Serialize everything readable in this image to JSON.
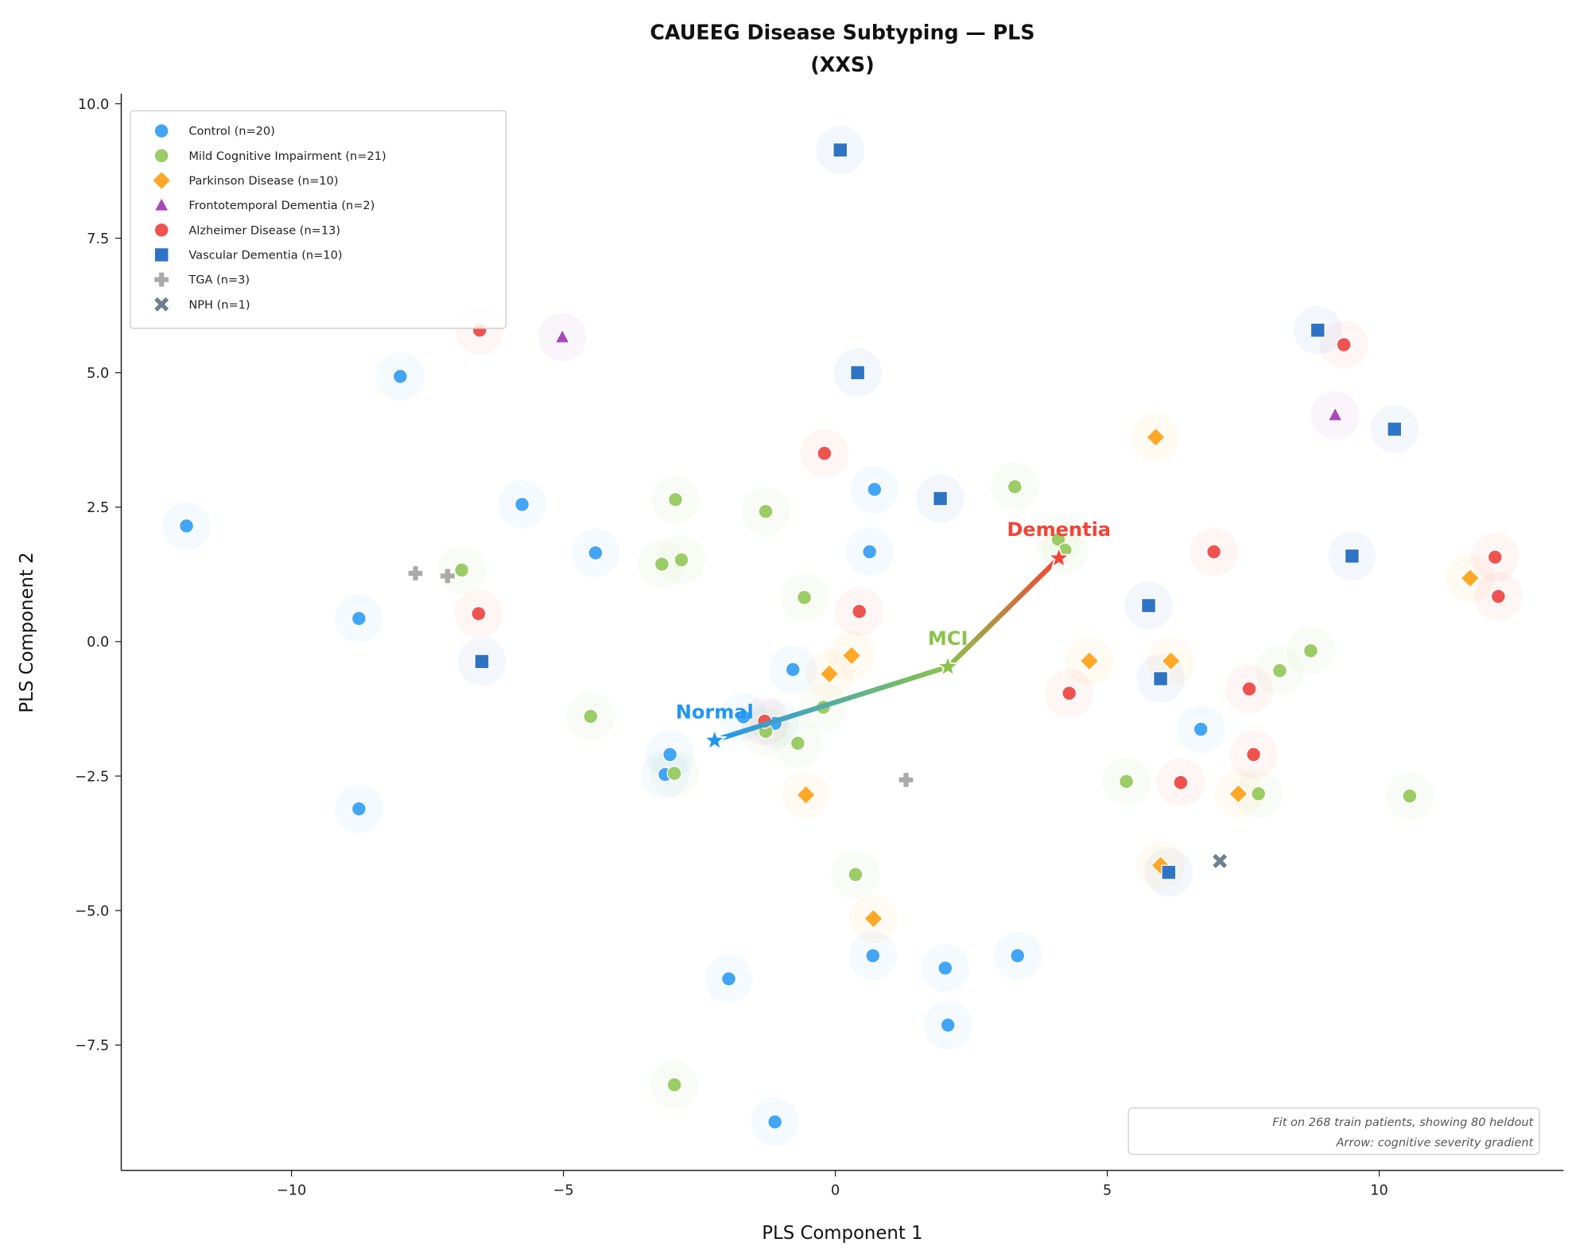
{
  "chart_data": {
    "type": "scatter",
    "title_line1": "CAUEEG Disease Subtyping — PLS",
    "title_line2": "(XXS)",
    "xlabel": "PLS Component 1",
    "ylabel": "PLS Component 2",
    "xlim": [
      -13.13,
      13.39
    ],
    "ylim": [
      -9.83,
      10.19
    ],
    "xticks": [
      {
        "v": -10,
        "label": "−10"
      },
      {
        "v": -5,
        "label": "−5"
      },
      {
        "v": 0,
        "label": "0"
      },
      {
        "v": 5,
        "label": "5"
      },
      {
        "v": 10,
        "label": "10"
      }
    ],
    "yticks": [
      {
        "v": 10,
        "label": "10.0"
      },
      {
        "v": 7.5,
        "label": "7.5"
      },
      {
        "v": 5,
        "label": "5.0"
      },
      {
        "v": 2.5,
        "label": "2.5"
      },
      {
        "v": 0,
        "label": "0.0"
      },
      {
        "v": -2.5,
        "label": "−2.5"
      },
      {
        "v": -5,
        "label": "−5.0"
      },
      {
        "v": -7.5,
        "label": "−7.5"
      }
    ],
    "legend_position": "top-left",
    "series": [
      {
        "name": "Control (n=20)",
        "marker": "circle",
        "color": "#42A5F5",
        "halo": true,
        "points": [
          [
            -11.93,
            2.15
          ],
          [
            -8.0,
            4.93
          ],
          [
            -8.76,
            0.43
          ],
          [
            -8.76,
            -3.11
          ],
          [
            -5.76,
            2.55
          ],
          [
            -4.41,
            1.65
          ],
          [
            -3.04,
            -2.1
          ],
          [
            -3.13,
            -2.47
          ],
          [
            -0.78,
            -0.52
          ],
          [
            -1.11,
            -1.52
          ],
          [
            -1.69,
            -1.4
          ],
          [
            0.72,
            2.83
          ],
          [
            0.63,
            1.67
          ],
          [
            0.69,
            -5.84
          ],
          [
            -1.96,
            -6.27
          ],
          [
            2.02,
            -6.07
          ],
          [
            3.35,
            -5.84
          ],
          [
            2.07,
            -7.13
          ],
          [
            -1.11,
            -8.93
          ],
          [
            6.72,
            -1.63
          ]
        ]
      },
      {
        "name": "Mild Cognitive Impairment (n=21)",
        "marker": "circle",
        "color": "#9CCC65",
        "halo": true,
        "points": [
          [
            -6.87,
            1.33
          ],
          [
            -2.94,
            2.64
          ],
          [
            -3.19,
            1.44
          ],
          [
            -2.83,
            1.52
          ],
          [
            -1.28,
            2.42
          ],
          [
            -0.57,
            0.82
          ],
          [
            -4.5,
            -1.39
          ],
          [
            -2.96,
            -2.45
          ],
          [
            -1.28,
            -1.67
          ],
          [
            -0.69,
            -1.89
          ],
          [
            -0.22,
            -1.22
          ],
          [
            3.3,
            2.88
          ],
          [
            4.1,
            1.9
          ],
          [
            4.22,
            1.7
          ],
          [
            5.35,
            -2.6
          ],
          [
            7.78,
            -2.83
          ],
          [
            8.17,
            -0.54
          ],
          [
            8.74,
            -0.17
          ],
          [
            10.56,
            -2.87
          ],
          [
            0.37,
            -4.33
          ],
          [
            -2.96,
            -8.24
          ]
        ]
      },
      {
        "name": "Parkinson Disease (n=10)",
        "marker": "diamond",
        "color": "#FFA726",
        "halo": true,
        "points": [
          [
            5.89,
            3.8
          ],
          [
            11.67,
            1.18
          ],
          [
            0.3,
            -0.26
          ],
          [
            -0.11,
            -0.6
          ],
          [
            4.67,
            -0.36
          ],
          [
            6.17,
            -0.36
          ],
          [
            -0.54,
            -2.85
          ],
          [
            7.41,
            -2.83
          ],
          [
            5.98,
            -4.16
          ],
          [
            0.7,
            -5.15
          ]
        ]
      },
      {
        "name": "Frontotemporal Dementia (n=2)",
        "marker": "triangle",
        "color": "#AB47BC",
        "halo": true,
        "points": [
          [
            -5.02,
            5.66
          ],
          [
            9.19,
            4.21
          ]
        ]
      },
      {
        "name": "Alzheimer Disease (n=13)",
        "marker": "circle",
        "color": "#EF5350",
        "halo": true,
        "points": [
          [
            -6.54,
            5.79
          ],
          [
            -6.56,
            0.52
          ],
          [
            -0.2,
            3.5
          ],
          [
            0.44,
            0.56
          ],
          [
            -1.3,
            -1.48
          ],
          [
            9.35,
            5.52
          ],
          [
            6.96,
            1.67
          ],
          [
            12.13,
            1.57
          ],
          [
            12.19,
            0.84
          ],
          [
            4.3,
            -0.96
          ],
          [
            7.61,
            -0.88
          ],
          [
            7.69,
            -2.1
          ],
          [
            6.35,
            -2.62
          ]
        ]
      },
      {
        "name": "Vascular Dementia (n=10)",
        "marker": "square",
        "color": "#2F73C4",
        "halo": true,
        "points": [
          [
            0.09,
            9.14
          ],
          [
            0.41,
            5.0
          ],
          [
            1.93,
            2.66
          ],
          [
            -6.5,
            -0.37
          ],
          [
            8.87,
            5.79
          ],
          [
            10.28,
            3.95
          ],
          [
            9.5,
            1.59
          ],
          [
            5.76,
            0.67
          ],
          [
            5.98,
            -0.69
          ],
          [
            6.13,
            -4.29
          ]
        ]
      },
      {
        "name": "TGA (n=3)",
        "marker": "plus",
        "color": "#AAAAAA",
        "halo": false,
        "points": [
          [
            -7.72,
            1.27
          ],
          [
            -7.13,
            1.22
          ],
          [
            1.3,
            -2.57
          ]
        ]
      },
      {
        "name": "NPH (n=1)",
        "marker": "x",
        "color": "#708090",
        "halo": false,
        "points": [
          [
            7.07,
            -4.08
          ]
        ]
      }
    ],
    "centroids": [
      {
        "label": "Normal",
        "x": -2.22,
        "y": -1.84,
        "color": "#2196F3"
      },
      {
        "label": "MCI",
        "x": 2.07,
        "y": -0.47,
        "color": "#8BC34A"
      },
      {
        "label": "Dementia",
        "x": 4.11,
        "y": 1.55,
        "color": "#F44336"
      }
    ],
    "annotation": {
      "line1": "Fit on 268 train patients, showing 80 heldout",
      "line2": "Arrow: cognitive severity gradient"
    }
  }
}
